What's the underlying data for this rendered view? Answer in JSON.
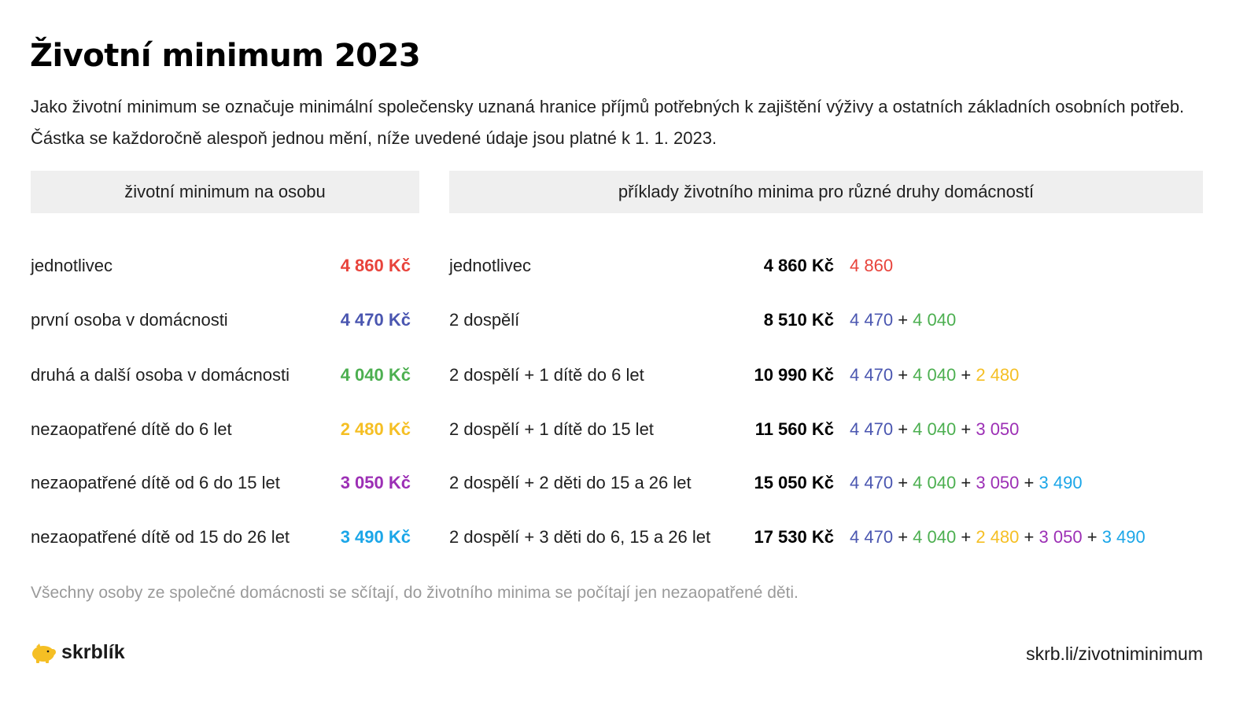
{
  "title": "Životní minimum 2023",
  "intro": "Jako životní minimum se označuje minimální společensky uznaná hranice příjmů potřebných k zajištění výživy a ostatních základních osobních potřeb. Částka se každoročně alespoň jednou mění, níže uvedené údaje jsou platné k 1. 1. 2023.",
  "headers": {
    "per_person": "životní minimum na osobu",
    "households": "příklady životního minima pro různé druhy domácností"
  },
  "colors": {
    "red": "#e8433b",
    "blue": "#4a56b0",
    "green": "#4caf50",
    "yellow": "#f5bf24",
    "purple": "#9c2fb5",
    "cyan": "#1ba6e8"
  },
  "per_person": [
    {
      "label": "jednotlivec",
      "value": "4 860 Kč",
      "color": "red"
    },
    {
      "label": "první osoba v domácnosti",
      "value": "4 470 Kč",
      "color": "blue"
    },
    {
      "label": "druhá a další osoba v domácnosti",
      "value": "4 040 Kč",
      "color": "green"
    },
    {
      "label": "nezaopatřené dítě do 6 let",
      "value": "2 480 Kč",
      "color": "yellow"
    },
    {
      "label": "nezaopatřené dítě od 6 do 15 let",
      "value": "3 050 Kč",
      "color": "purple"
    },
    {
      "label": "nezaopatřené dítě od 15 do 26 let",
      "value": "3 490 Kč",
      "color": "cyan"
    }
  ],
  "households": [
    {
      "label": "jednotlivec",
      "total": "4 860 Kč",
      "parts": [
        {
          "value": "4 860",
          "color": "red"
        }
      ]
    },
    {
      "label": "2 dospělí",
      "total": "8 510 Kč",
      "parts": [
        {
          "value": "4 470",
          "color": "blue"
        },
        {
          "value": "4 040",
          "color": "green"
        }
      ]
    },
    {
      "label": "2 dospělí + 1 dítě do 6 let",
      "total": "10 990 Kč",
      "parts": [
        {
          "value": "4 470",
          "color": "blue"
        },
        {
          "value": "4 040",
          "color": "green"
        },
        {
          "value": "2 480",
          "color": "yellow"
        }
      ]
    },
    {
      "label": "2 dospělí + 1 dítě do 15 let",
      "total": "11 560 Kč",
      "parts": [
        {
          "value": "4 470",
          "color": "blue"
        },
        {
          "value": "4 040",
          "color": "green"
        },
        {
          "value": "3 050",
          "color": "purple"
        }
      ]
    },
    {
      "label": "2 dospělí + 2 děti do 15 a 26 let",
      "total": "15 050 Kč",
      "parts": [
        {
          "value": "4 470",
          "color": "blue"
        },
        {
          "value": "4 040",
          "color": "green"
        },
        {
          "value": "3 050",
          "color": "purple"
        },
        {
          "value": "3 490",
          "color": "cyan"
        }
      ]
    },
    {
      "label": "2 dospělí + 3 děti do 6, 15 a 26 let",
      "total": "17 530 Kč",
      "parts": [
        {
          "value": "4 470",
          "color": "blue"
        },
        {
          "value": "4 040",
          "color": "green"
        },
        {
          "value": "2 480",
          "color": "yellow"
        },
        {
          "value": "3 050",
          "color": "purple"
        },
        {
          "value": "3 490",
          "color": "cyan"
        }
      ]
    }
  ],
  "plus_sign": "+",
  "footnote": "Všechny osoby ze společné domácnosti se sčítají, do životního minima se počítají jen nezaopatřené děti.",
  "logo": {
    "text": "skrblík",
    "icon": "piggy-bank-icon",
    "icon_color": "#f5bf24"
  },
  "url": "skrb.li/zivotniminimum"
}
